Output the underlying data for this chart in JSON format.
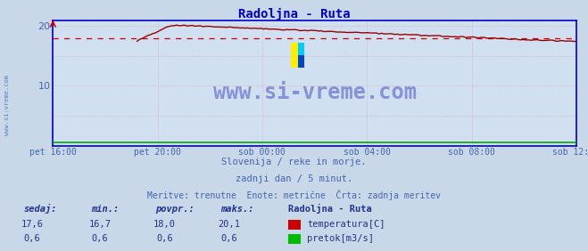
{
  "title": "Radoljna - Ruta",
  "title_color": "#0000cc",
  "bg_color": "#c8d8e8",
  "plot_bg_color": "#d0e0f0",
  "grid_color": "#e0a0a0",
  "xlabel_ticks": [
    "pet 16:00",
    "pet 20:00",
    "sob 00:00",
    "sob 04:00",
    "sob 08:00",
    "sob 12:00"
  ],
  "ylim_min": 0,
  "ylim_max": 21,
  "yticks": [
    10,
    20
  ],
  "avg_line_y": 18.0,
  "avg_line_color": "#cc0000",
  "temp_line_color": "#990000",
  "flow_line_color": "#00aa00",
  "watermark": "www.si-vreme.com",
  "watermark_color": "#0000aa",
  "watermark_alpha": 0.35,
  "info_line1": "Slovenija / reke in morje.",
  "info_line2": "zadnji dan / 5 minut.",
  "info_line3": "Meritve: trenutne  Enote: metrične  Črta: zadnja meritev",
  "info_color": "#4466aa",
  "legend_title": "Radoljna - Ruta",
  "legend_labels": [
    "temperatura[C]",
    "pretok[m3/s]"
  ],
  "legend_colors": [
    "#cc0000",
    "#00bb00"
  ],
  "table_headers": [
    "sedaj:",
    "min.:",
    "povpr.:",
    "maks.:"
  ],
  "table_temp": [
    "17,6",
    "16,7",
    "18,0",
    "20,1"
  ],
  "table_flow": [
    "0,6",
    "0,6",
    "0,6",
    "0,6"
  ],
  "table_color": "#223388",
  "axis_color": "#0000cc",
  "arrow_color": "#cc0000",
  "left_rotated_text": "www.si-vreme.com",
  "left_rotated_color": "#4466aa"
}
